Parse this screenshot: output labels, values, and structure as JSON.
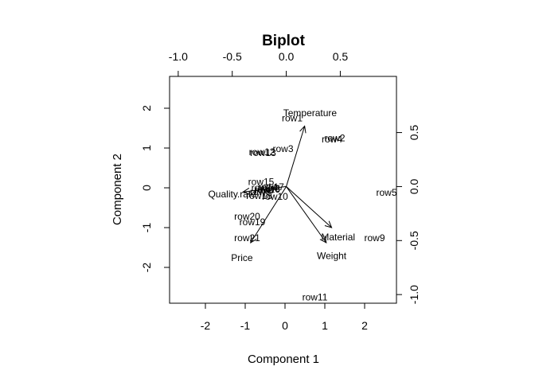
{
  "chart_data": {
    "type": "scatter",
    "title": "Biplot",
    "xlabel": "Component 1",
    "ylabel": "Component 2",
    "xlim": [
      -2.9,
      2.8
    ],
    "ylim": [
      -2.9,
      2.8
    ],
    "x_ticks": [
      -2,
      -1,
      0,
      1,
      2
    ],
    "y_ticks": [
      -2,
      -1,
      0,
      1,
      2
    ],
    "top_axis": {
      "lim": [
        -1.08,
        1.02
      ],
      "ticks": [
        "-1.0",
        "-0.5",
        "0.0",
        "0.5"
      ]
    },
    "right_axis": {
      "lim": [
        -1.08,
        1.02
      ],
      "ticks": [
        "-1.0",
        "-0.5",
        "0.0",
        "0.5"
      ]
    },
    "scores": [
      {
        "label": "row1",
        "x": 0.18,
        "y": 1.75
      },
      {
        "label": "row2",
        "x": 1.25,
        "y": 1.25
      },
      {
        "label": "row3",
        "x": -0.05,
        "y": 0.98
      },
      {
        "label": "row4",
        "x": 1.18,
        "y": 1.22
      },
      {
        "label": "row5",
        "x": 2.55,
        "y": -0.12
      },
      {
        "label": "row6",
        "x": -0.38,
        "y": -0.02
      },
      {
        "label": "row7",
        "x": -0.5,
        "y": -0.06
      },
      {
        "label": "row8",
        "x": -0.62,
        "y": -0.1
      },
      {
        "label": "row9",
        "x": 2.25,
        "y": -1.26
      },
      {
        "label": "row10",
        "x": -0.25,
        "y": -0.22
      },
      {
        "label": "row11",
        "x": 0.75,
        "y": -2.75
      },
      {
        "label": "row12",
        "x": -0.58,
        "y": 0.9
      },
      {
        "label": "row13",
        "x": -0.55,
        "y": 0.88
      },
      {
        "label": "row14",
        "x": -0.52,
        "y": 0.0
      },
      {
        "label": "row15",
        "x": -0.6,
        "y": 0.15
      },
      {
        "label": "row16",
        "x": -0.45,
        "y": -0.04
      },
      {
        "label": "row17",
        "x": -0.35,
        "y": 0.02
      },
      {
        "label": "row18",
        "x": -0.65,
        "y": -0.2
      },
      {
        "label": "row19",
        "x": -0.82,
        "y": -0.86
      },
      {
        "label": "row20",
        "x": -0.95,
        "y": -0.72
      },
      {
        "label": "row21",
        "x": -0.95,
        "y": -1.26
      }
    ],
    "loadings": [
      {
        "label": "Temperature",
        "x": 0.17,
        "y": 0.56,
        "label_x": 0.22,
        "label_y": 0.68
      },
      {
        "label": "Quality.rate",
        "x": -0.4,
        "y": -0.05,
        "label_x": -0.5,
        "label_y": -0.07
      },
      {
        "label": "Price",
        "x": -0.33,
        "y": -0.52,
        "label_x": -0.41,
        "label_y": -0.66
      },
      {
        "label": "Material",
        "x": 0.42,
        "y": -0.38,
        "label_x": 0.48,
        "label_y": -0.47
      },
      {
        "label": "Weight",
        "x": 0.37,
        "y": -0.52,
        "label_x": 0.42,
        "label_y": -0.64
      }
    ]
  }
}
